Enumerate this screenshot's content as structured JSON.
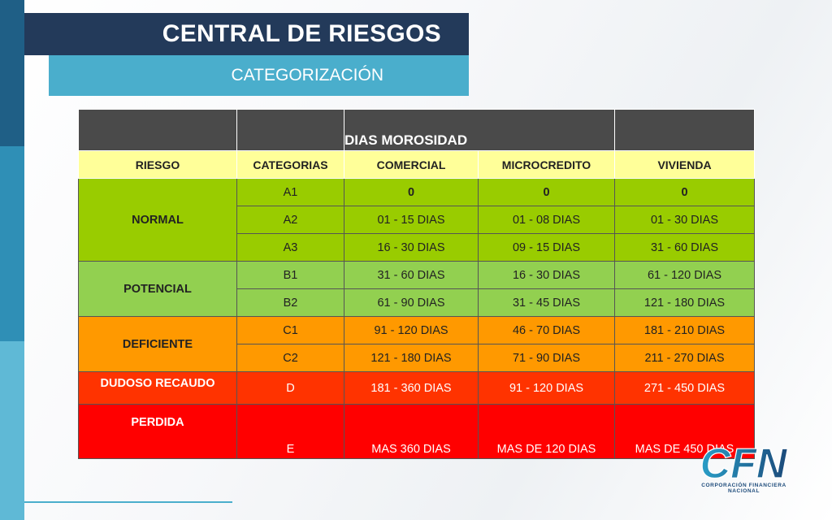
{
  "header": {
    "title": "CENTRAL DE RIESGOS",
    "subtitle": "CATEGORIZACIÓN"
  },
  "table": {
    "group_header": "DIAS MOROSIDAD",
    "columns": [
      "RIESGO",
      "CATEGORIAS",
      "COMERCIAL",
      "MICROCREDITO",
      "VIVIENDA"
    ],
    "groups": [
      {
        "riesgo": "NORMAL",
        "color": "#99cc00",
        "rows": [
          {
            "categoria": "A1",
            "comercial": "0",
            "microcredito": "0",
            "vivienda": "0"
          },
          {
            "categoria": "A2",
            "comercial": "01 - 15 DIAS",
            "microcredito": "01 - 08 DIAS",
            "vivienda": "01 - 30 DIAS"
          },
          {
            "categoria": "A3",
            "comercial": "16 - 30 DIAS",
            "microcredito": "09 - 15 DIAS",
            "vivienda": "31 - 60 DIAS"
          }
        ]
      },
      {
        "riesgo": "POTENCIAL",
        "color": "#92d050",
        "rows": [
          {
            "categoria": "B1",
            "comercial": "31 - 60 DIAS",
            "microcredito": "16 - 30 DIAS",
            "vivienda": "61 - 120 DIAS"
          },
          {
            "categoria": "B2",
            "comercial": "61 - 90 DIAS",
            "microcredito": "31 - 45 DIAS",
            "vivienda": "121 - 180 DIAS"
          }
        ]
      },
      {
        "riesgo": "DEFICIENTE",
        "color": "#ff9900",
        "rows": [
          {
            "categoria": "C1",
            "comercial": "91 - 120 DIAS",
            "microcredito": "46 - 70 DIAS",
            "vivienda": "181 - 210 DIAS"
          },
          {
            "categoria": "C2",
            "comercial": "121 - 180 DIAS",
            "microcredito": "71 - 90 DIAS",
            "vivienda": "211 - 270 DIAS"
          }
        ]
      },
      {
        "riesgo": "DUDOSO RECAUDO",
        "color": "#ff3300",
        "rows": [
          {
            "categoria": "D",
            "comercial": "181 - 360 DIAS",
            "microcredito": "91 - 120 DIAS",
            "vivienda": "271 - 450 DIAS"
          }
        ]
      },
      {
        "riesgo": "PERDIDA",
        "color": "#ff0000",
        "rows": [
          {
            "categoria": "E",
            "comercial": "MAS 360 DIAS",
            "microcredito": "MAS DE 120 DIAS",
            "vivienda": "MAS DE 450 DIAS"
          }
        ]
      }
    ]
  },
  "logo": {
    "text": "CFN",
    "caption": "CORPORACIÓN FINANCIERA NACIONAL",
    "icon": "cfn-logo-icon"
  }
}
